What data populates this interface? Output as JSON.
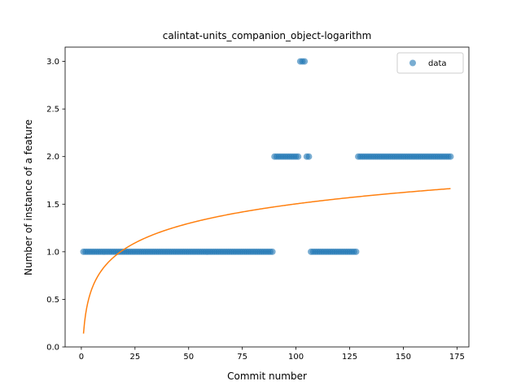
{
  "chart_data": {
    "type": "scatter",
    "title": "calintat-units_companion_object-logarithm",
    "xlabel": "Commit number",
    "ylabel": "Number of instance of a feature",
    "xlim": [
      -7.55,
      180.55
    ],
    "ylim": [
      0,
      3.15
    ],
    "xticks": [
      0,
      25,
      50,
      75,
      100,
      125,
      150,
      175
    ],
    "yticks": [
      0.0,
      0.5,
      1.0,
      1.5,
      2.0,
      2.5,
      3.0
    ],
    "xtick_labels": [
      "0",
      "25",
      "50",
      "75",
      "100",
      "125",
      "150",
      "175"
    ],
    "ytick_labels": [
      "0.0",
      "0.5",
      "1.0",
      "1.5",
      "2.0",
      "2.5",
      "3.0"
    ],
    "legend": {
      "position": "top-right",
      "entries": [
        "data"
      ]
    },
    "grid": false,
    "series": [
      {
        "name": "data",
        "kind": "scatter",
        "color": "#1f77b4",
        "segments": [
          {
            "x_start": 1,
            "x_end": 89,
            "y": 1
          },
          {
            "x_start": 90,
            "x_end": 101,
            "y": 2
          },
          {
            "x_start": 102,
            "x_end": 104,
            "y": 3
          },
          {
            "x_start": 105,
            "x_end": 106,
            "y": 2
          },
          {
            "x_start": 107,
            "x_end": 128,
            "y": 1
          },
          {
            "x_start": 129,
            "x_end": 172,
            "y": 2
          }
        ]
      },
      {
        "kind": "line",
        "color": "#ff7f0e",
        "fit": {
          "function": "logarithmic",
          "a": 0.14,
          "b": 0.296,
          "x_start": 1,
          "x_end": 172
        }
      }
    ]
  }
}
